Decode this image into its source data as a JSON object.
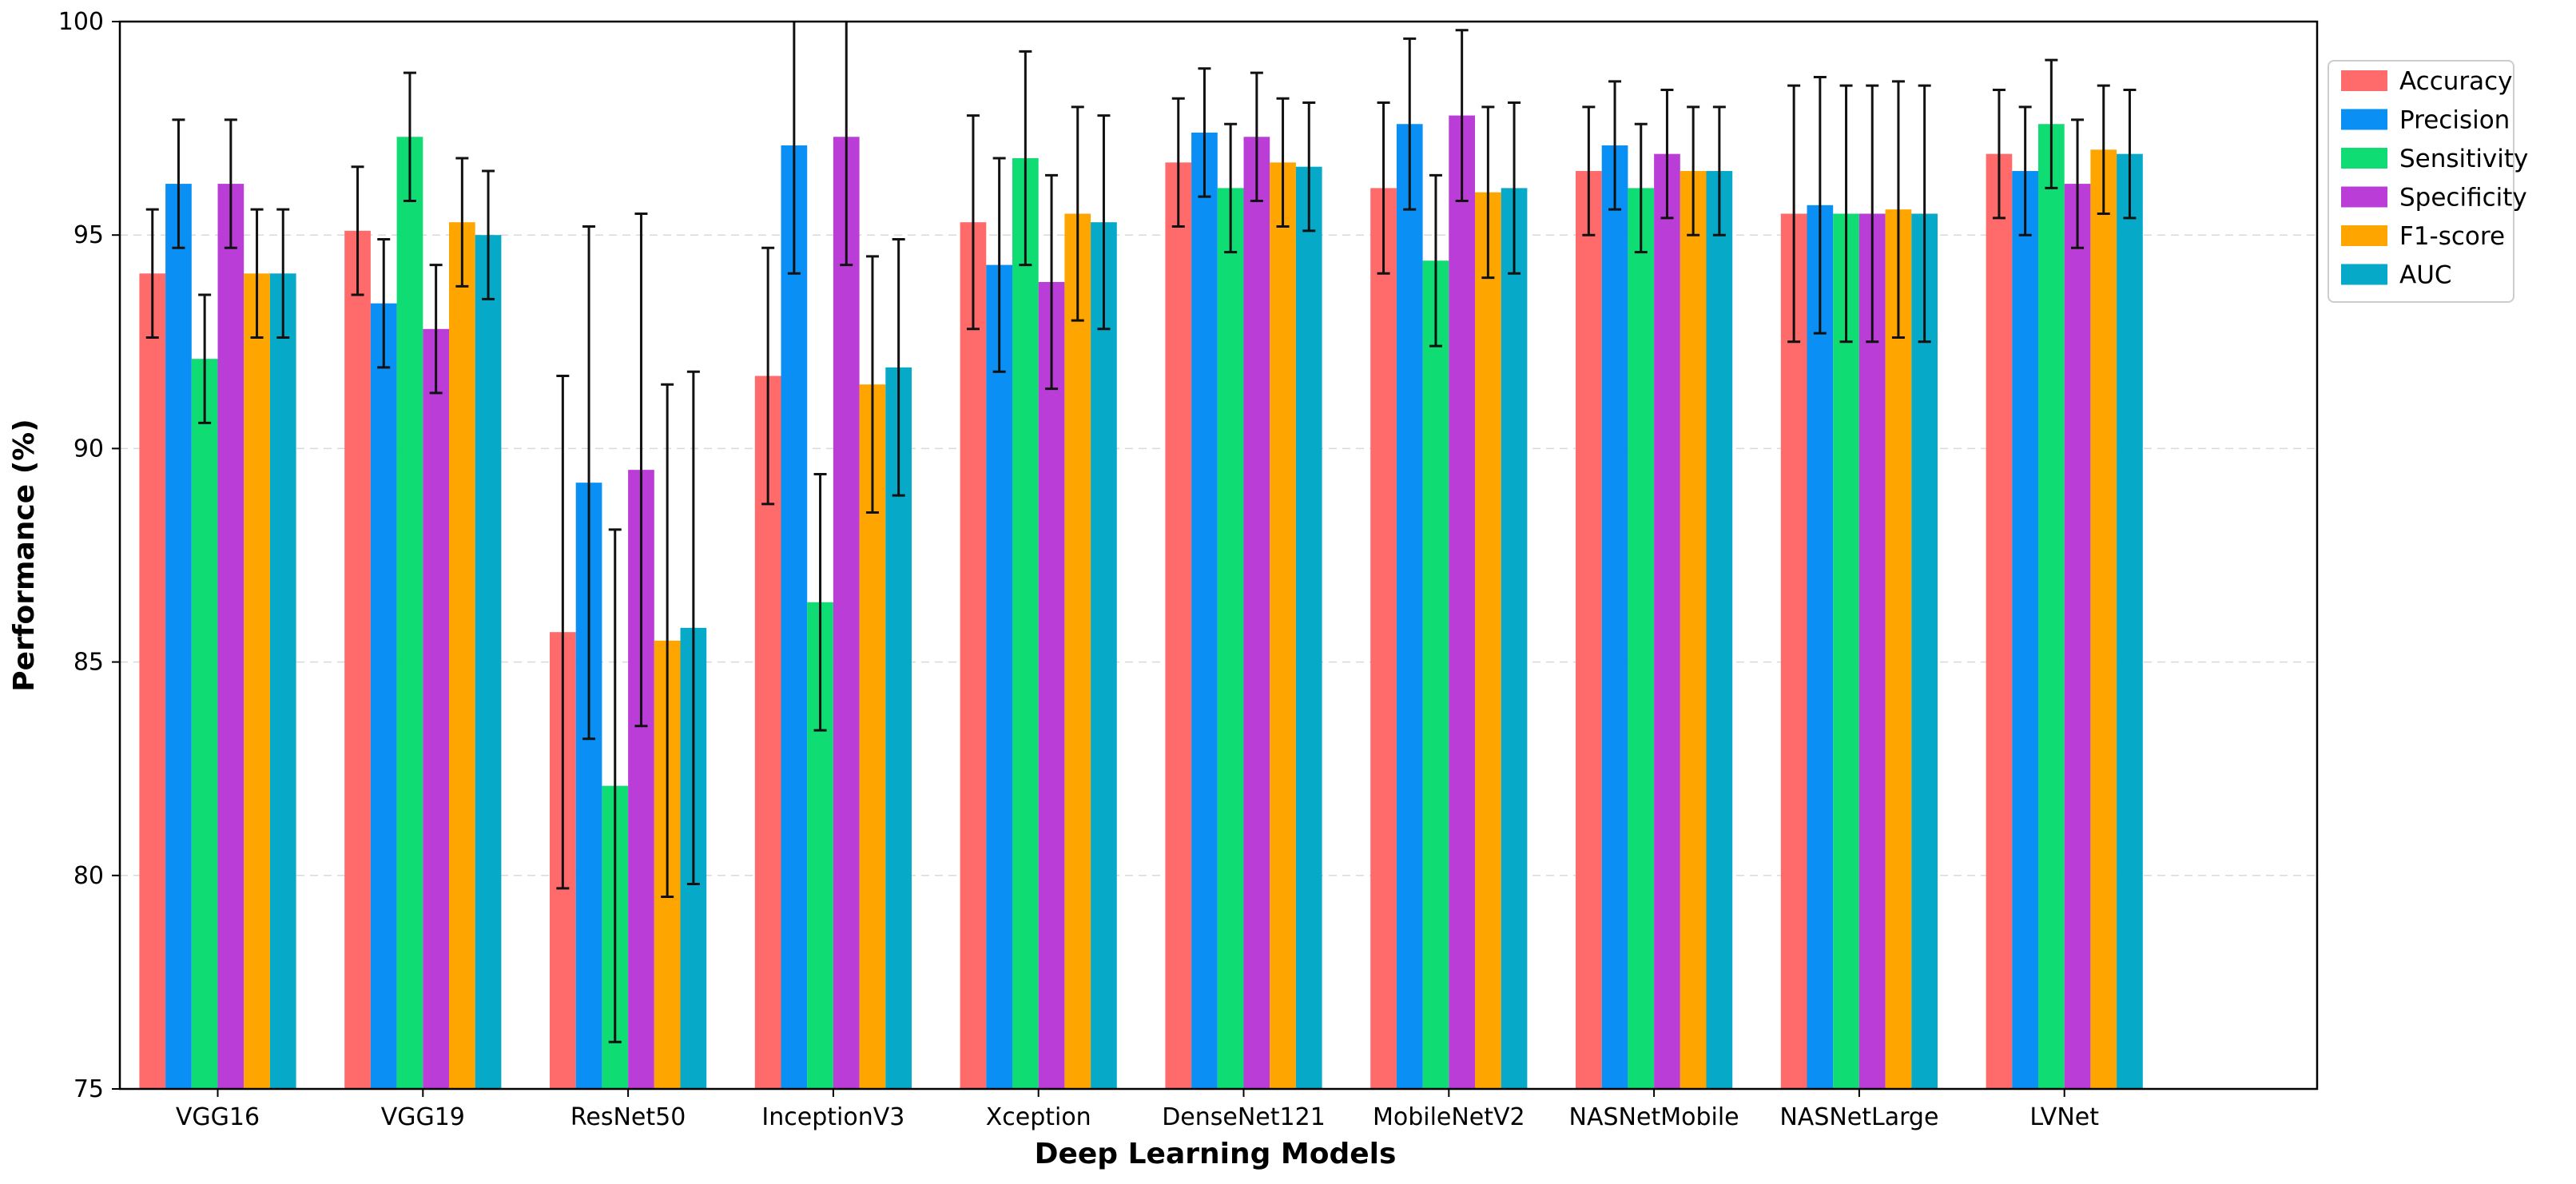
{
  "chart_data": {
    "type": "bar",
    "title": "",
    "xlabel": "Deep Learning Models",
    "ylabel": "Performance (%)",
    "ylim": [
      75,
      100
    ],
    "yticks": [
      75,
      80,
      85,
      90,
      95,
      100
    ],
    "grid": true,
    "legend_position": "top-right",
    "categories": [
      "VGG16",
      "VGG19",
      "ResNet50",
      "InceptionV3",
      "Xception",
      "DenseNet121",
      "MobileNetV2",
      "NASNetMobile",
      "NASNetLarge",
      "LVNet"
    ],
    "series": [
      {
        "name": "Accuracy",
        "color": "#ff6b6b",
        "values": [
          94.1,
          95.1,
          85.7,
          91.7,
          95.3,
          96.7,
          96.1,
          96.5,
          95.5,
          96.9
        ],
        "errors": [
          1.5,
          1.5,
          6.0,
          3.0,
          2.5,
          1.5,
          2.0,
          1.5,
          3.0,
          1.5
        ]
      },
      {
        "name": "Precision",
        "color": "#0a8ff5",
        "values": [
          96.2,
          93.4,
          89.2,
          97.1,
          94.3,
          97.4,
          97.6,
          97.1,
          95.7,
          96.5
        ],
        "errors": [
          1.5,
          1.5,
          6.0,
          3.0,
          2.5,
          1.5,
          2.0,
          1.5,
          3.0,
          1.5
        ]
      },
      {
        "name": "Sensitivity",
        "color": "#0fdc73",
        "values": [
          92.1,
          97.3,
          82.1,
          86.4,
          96.8,
          96.1,
          94.4,
          96.1,
          95.5,
          97.6
        ],
        "errors": [
          1.5,
          1.5,
          6.0,
          3.0,
          2.5,
          1.5,
          2.0,
          1.5,
          3.0,
          1.5
        ]
      },
      {
        "name": "Specificity",
        "color": "#bb3dd8",
        "values": [
          96.2,
          92.8,
          89.5,
          97.3,
          93.9,
          97.3,
          97.8,
          96.9,
          95.5,
          96.2
        ],
        "errors": [
          1.5,
          1.5,
          6.0,
          3.0,
          2.5,
          1.5,
          2.0,
          1.5,
          3.0,
          1.5
        ]
      },
      {
        "name": "F1-score",
        "color": "#ffa500",
        "values": [
          94.1,
          95.3,
          85.5,
          91.5,
          95.5,
          96.7,
          96.0,
          96.5,
          95.6,
          97.0
        ],
        "errors": [
          1.5,
          1.5,
          6.0,
          3.0,
          2.5,
          1.5,
          2.0,
          1.5,
          3.0,
          1.5
        ]
      },
      {
        "name": "AUC",
        "color": "#06aac8",
        "values": [
          94.1,
          95.0,
          85.8,
          91.9,
          95.3,
          96.6,
          96.1,
          96.5,
          95.5,
          96.9
        ],
        "errors": [
          1.5,
          1.5,
          6.0,
          3.0,
          2.5,
          1.5,
          2.0,
          1.5,
          3.0,
          1.5
        ]
      }
    ]
  }
}
